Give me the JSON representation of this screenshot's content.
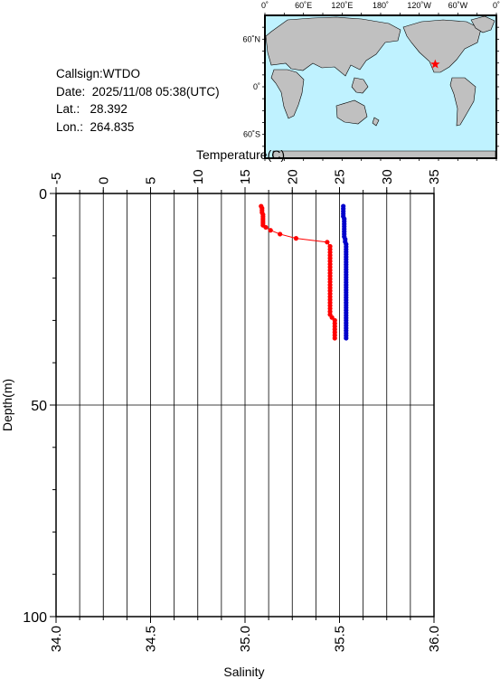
{
  "station": {
    "callsign_label": "Callsign:",
    "callsign": "WTDO",
    "date_label": "Date:",
    "date": "2025/11/08 05:38(UTC)",
    "lat_label": "Lat.:",
    "lat": "28.392",
    "lon_label": "Lon.:",
    "lon": "264.835"
  },
  "map": {
    "lon_ticks": [
      "0˚",
      "60˚E",
      "120˚E",
      "180˚",
      "120˚W",
      "60˚W",
      "0˚"
    ],
    "lat_ticks": [
      "60˚N",
      "0˚",
      "60˚S"
    ],
    "marker_lon": 264.835,
    "marker_lat": 28.392,
    "ocean_color": "#bff2ff",
    "land_color": "#c0c0c0",
    "marker_color": "#ff0000"
  },
  "chart_data": {
    "type": "scatter",
    "xlabel_top": "Temperature(C)",
    "xlabel_bottom": "Salinity",
    "ylabel": "Depth(m)",
    "temperature_axis": {
      "min": -5,
      "max": 35,
      "ticks": [
        -5,
        0,
        5,
        10,
        15,
        20,
        25,
        30,
        35
      ]
    },
    "salinity_axis": {
      "min": 34.0,
      "max": 36.0,
      "ticks": [
        "34.0",
        "34.5",
        "35.0",
        "35.5",
        "36.0"
      ]
    },
    "depth_axis": {
      "min": 0,
      "max": 100,
      "ticks": [
        0,
        50,
        100
      ]
    },
    "grid": true,
    "series": [
      {
        "color": "#ff0000",
        "connected": true,
        "points": [
          {
            "value": 16.7,
            "depth": 3.0
          },
          {
            "value": 16.8,
            "depth": 3.5
          },
          {
            "value": 16.8,
            "depth": 4.0
          },
          {
            "value": 16.8,
            "depth": 4.5
          },
          {
            "value": 16.9,
            "depth": 5.0
          },
          {
            "value": 16.9,
            "depth": 5.5
          },
          {
            "value": 16.9,
            "depth": 6.0
          },
          {
            "value": 16.9,
            "depth": 6.5
          },
          {
            "value": 16.9,
            "depth": 7.0
          },
          {
            "value": 16.9,
            "depth": 7.5
          },
          {
            "value": 17.2,
            "depth": 8.0
          },
          {
            "value": 17.7,
            "depth": 8.7
          },
          {
            "value": 18.7,
            "depth": 9.6
          },
          {
            "value": 20.4,
            "depth": 10.6
          },
          {
            "value": 23.7,
            "depth": 11.5
          },
          {
            "value": 24.0,
            "depth": 12.5
          },
          {
            "value": 24.0,
            "depth": 13.2
          },
          {
            "value": 24.0,
            "depth": 13.9
          },
          {
            "value": 24.0,
            "depth": 14.6
          },
          {
            "value": 24.0,
            "depth": 15.3
          },
          {
            "value": 24.0,
            "depth": 16.0
          },
          {
            "value": 24.0,
            "depth": 16.7
          },
          {
            "value": 24.0,
            "depth": 17.4
          },
          {
            "value": 24.0,
            "depth": 18.1
          },
          {
            "value": 24.0,
            "depth": 18.8
          },
          {
            "value": 24.0,
            "depth": 19.5
          },
          {
            "value": 24.0,
            "depth": 20.2
          },
          {
            "value": 24.0,
            "depth": 20.9
          },
          {
            "value": 24.0,
            "depth": 21.6
          },
          {
            "value": 24.0,
            "depth": 22.3
          },
          {
            "value": 24.0,
            "depth": 23.0
          },
          {
            "value": 24.0,
            "depth": 23.7
          },
          {
            "value": 24.0,
            "depth": 24.4
          },
          {
            "value": 24.0,
            "depth": 25.1
          },
          {
            "value": 24.0,
            "depth": 25.8
          },
          {
            "value": 24.0,
            "depth": 26.5
          },
          {
            "value": 24.0,
            "depth": 27.2
          },
          {
            "value": 24.0,
            "depth": 27.9
          },
          {
            "value": 24.0,
            "depth": 28.6
          },
          {
            "value": 24.2,
            "depth": 29.3
          },
          {
            "value": 24.5,
            "depth": 30.0
          },
          {
            "value": 24.5,
            "depth": 30.7
          },
          {
            "value": 24.5,
            "depth": 31.4
          },
          {
            "value": 24.5,
            "depth": 32.1
          },
          {
            "value": 24.5,
            "depth": 32.8
          },
          {
            "value": 24.5,
            "depth": 33.5
          },
          {
            "value": 24.5,
            "depth": 34.2
          }
        ]
      },
      {
        "color": "#0000cc",
        "connected": true,
        "points": [
          {
            "value": 25.4,
            "depth": 3.0
          },
          {
            "value": 25.4,
            "depth": 3.6
          },
          {
            "value": 25.4,
            "depth": 4.2
          },
          {
            "value": 25.4,
            "depth": 4.8
          },
          {
            "value": 25.4,
            "depth": 5.4
          },
          {
            "value": 25.5,
            "depth": 6.0
          },
          {
            "value": 25.5,
            "depth": 6.6
          },
          {
            "value": 25.5,
            "depth": 7.2
          },
          {
            "value": 25.5,
            "depth": 7.8
          },
          {
            "value": 25.5,
            "depth": 8.4
          },
          {
            "value": 25.5,
            "depth": 9.0
          },
          {
            "value": 25.5,
            "depth": 9.6
          },
          {
            "value": 25.5,
            "depth": 10.2
          },
          {
            "value": 25.6,
            "depth": 10.8
          },
          {
            "value": 25.6,
            "depth": 11.4
          },
          {
            "value": 25.7,
            "depth": 12.0
          },
          {
            "value": 25.7,
            "depth": 12.6
          },
          {
            "value": 25.7,
            "depth": 13.2
          },
          {
            "value": 25.7,
            "depth": 13.8
          },
          {
            "value": 25.7,
            "depth": 14.4
          },
          {
            "value": 25.7,
            "depth": 15.0
          },
          {
            "value": 25.7,
            "depth": 15.6
          },
          {
            "value": 25.7,
            "depth": 16.2
          },
          {
            "value": 25.7,
            "depth": 16.8
          },
          {
            "value": 25.7,
            "depth": 17.4
          },
          {
            "value": 25.7,
            "depth": 18.0
          },
          {
            "value": 25.7,
            "depth": 18.6
          },
          {
            "value": 25.7,
            "depth": 19.2
          },
          {
            "value": 25.7,
            "depth": 19.8
          },
          {
            "value": 25.7,
            "depth": 20.4
          },
          {
            "value": 25.7,
            "depth": 21.0
          },
          {
            "value": 25.7,
            "depth": 21.6
          },
          {
            "value": 25.7,
            "depth": 22.2
          },
          {
            "value": 25.7,
            "depth": 22.8
          },
          {
            "value": 25.7,
            "depth": 23.4
          },
          {
            "value": 25.7,
            "depth": 24.0
          },
          {
            "value": 25.7,
            "depth": 24.6
          },
          {
            "value": 25.7,
            "depth": 25.2
          },
          {
            "value": 25.7,
            "depth": 25.8
          },
          {
            "value": 25.7,
            "depth": 26.4
          },
          {
            "value": 25.7,
            "depth": 27.0
          },
          {
            "value": 25.7,
            "depth": 27.6
          },
          {
            "value": 25.7,
            "depth": 28.2
          },
          {
            "value": 25.7,
            "depth": 28.8
          },
          {
            "value": 25.7,
            "depth": 29.4
          },
          {
            "value": 25.7,
            "depth": 30.0
          },
          {
            "value": 25.7,
            "depth": 30.6
          },
          {
            "value": 25.7,
            "depth": 31.2
          },
          {
            "value": 25.7,
            "depth": 31.8
          },
          {
            "value": 25.7,
            "depth": 32.4
          },
          {
            "value": 25.7,
            "depth": 33.0
          },
          {
            "value": 25.7,
            "depth": 33.6
          },
          {
            "value": 25.7,
            "depth": 34.2
          }
        ]
      }
    ]
  }
}
